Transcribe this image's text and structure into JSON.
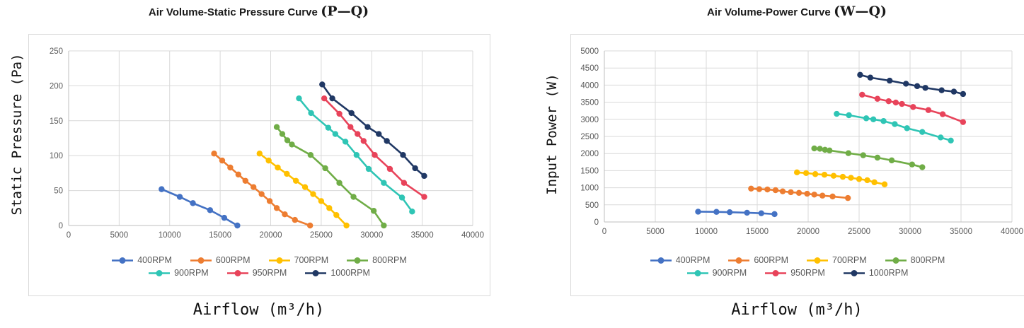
{
  "page": {
    "background": "#ffffff"
  },
  "styles": {
    "grid_color": "#d9d9d9",
    "axis_color": "#bfbfbf",
    "tick_text_color": "#595959",
    "legend_text_color": "#595959",
    "title_text_color": "#1a1a1a",
    "panel_border_color": "#d9d9d9"
  },
  "chart_data": [
    {
      "type": "line",
      "title_main": "Air Volume-Static Pressure Curve",
      "title_paren": "(P—Q)",
      "xlabel": "Airflow (m³/h)",
      "ylabel": "Static Pressure (Pa)",
      "xlim": [
        0,
        40000
      ],
      "ylim": [
        0,
        250
      ],
      "xticks": [
        0,
        5000,
        10000,
        15000,
        20000,
        25000,
        30000,
        35000,
        40000
      ],
      "yticks": [
        0,
        50,
        100,
        150,
        200,
        250
      ],
      "grid": true,
      "legend_position": "bottom-inside",
      "legend_split": 4,
      "series": [
        {
          "name": "400RPM",
          "color": "#4472C4",
          "points": [
            [
              9200,
              52
            ],
            [
              11000,
              41
            ],
            [
              12300,
              32
            ],
            [
              14000,
              22
            ],
            [
              15400,
              11
            ],
            [
              16700,
              0
            ]
          ]
        },
        {
          "name": "600RPM",
          "color": "#ED7D31",
          "points": [
            [
              14400,
              103
            ],
            [
              15200,
              93
            ],
            [
              16000,
              83
            ],
            [
              16800,
              73
            ],
            [
              17500,
              64
            ],
            [
              18300,
              55
            ],
            [
              19100,
              45
            ],
            [
              19900,
              35
            ],
            [
              20600,
              25
            ],
            [
              21400,
              16
            ],
            [
              22400,
              8
            ],
            [
              23900,
              0
            ]
          ]
        },
        {
          "name": "700RPM",
          "color": "#FFC000",
          "points": [
            [
              18900,
              103
            ],
            [
              19800,
              93
            ],
            [
              20700,
              83
            ],
            [
              21600,
              74
            ],
            [
              22500,
              64
            ],
            [
              23400,
              55
            ],
            [
              24200,
              45
            ],
            [
              25000,
              35
            ],
            [
              25800,
              25
            ],
            [
              26500,
              15
            ],
            [
              27500,
              0
            ]
          ]
        },
        {
          "name": "800RPM",
          "color": "#70AD47",
          "points": [
            [
              20600,
              141
            ],
            [
              21150,
              131
            ],
            [
              21650,
              122
            ],
            [
              22100,
              116
            ],
            [
              23950,
              101
            ],
            [
              25400,
              82
            ],
            [
              26800,
              61
            ],
            [
              28200,
              41
            ],
            [
              30200,
              21
            ],
            [
              31200,
              0
            ]
          ]
        },
        {
          "name": "900RPM",
          "color": "#2FC5B5",
          "points": [
            [
              22800,
              182
            ],
            [
              24000,
              161
            ],
            [
              25700,
              140
            ],
            [
              26400,
              131
            ],
            [
              27400,
              120
            ],
            [
              28500,
              101
            ],
            [
              29700,
              81
            ],
            [
              31200,
              61
            ],
            [
              33000,
              40
            ],
            [
              34000,
              20
            ]
          ]
        },
        {
          "name": "950RPM",
          "color": "#E8435A",
          "points": [
            [
              25300,
              182
            ],
            [
              26800,
              160
            ],
            [
              27900,
              141
            ],
            [
              28600,
              131
            ],
            [
              29200,
              121
            ],
            [
              30300,
              101
            ],
            [
              31800,
              81
            ],
            [
              33200,
              61
            ],
            [
              35200,
              41
            ]
          ]
        },
        {
          "name": "1000RPM",
          "color": "#203864",
          "points": [
            [
              25100,
              202
            ],
            [
              26100,
              182
            ],
            [
              28000,
              161
            ],
            [
              29600,
              141
            ],
            [
              30700,
              131
            ],
            [
              31500,
              121
            ],
            [
              33100,
              101
            ],
            [
              34300,
              82
            ],
            [
              35200,
              71
            ]
          ]
        }
      ]
    },
    {
      "type": "line",
      "title_main": "Air Volume-Power Curve",
      "title_paren": "(W—Q)",
      "xlabel": "Airflow (m³/h)",
      "ylabel": "Input Power (W)",
      "xlim": [
        0,
        40000
      ],
      "ylim": [
        0,
        5000
      ],
      "xticks": [
        0,
        5000,
        10000,
        15000,
        20000,
        25000,
        30000,
        35000,
        40000
      ],
      "yticks": [
        0,
        500,
        1000,
        1500,
        2000,
        2500,
        3000,
        3500,
        4000,
        4500,
        5000
      ],
      "grid": true,
      "legend_position": "bottom-inside",
      "legend_split": 4,
      "series": [
        {
          "name": "400RPM",
          "color": "#4472C4",
          "points": [
            [
              9200,
              300
            ],
            [
              11000,
              295
            ],
            [
              12300,
              285
            ],
            [
              14000,
              270
            ],
            [
              15400,
              255
            ],
            [
              16700,
              230
            ]
          ]
        },
        {
          "name": "600RPM",
          "color": "#ED7D31",
          "points": [
            [
              14400,
              975
            ],
            [
              15200,
              960
            ],
            [
              16000,
              950
            ],
            [
              16800,
              930
            ],
            [
              17500,
              895
            ],
            [
              18300,
              870
            ],
            [
              19100,
              850
            ],
            [
              19900,
              825
            ],
            [
              20600,
              800
            ],
            [
              21400,
              770
            ],
            [
              22400,
              745
            ],
            [
              23900,
              700
            ]
          ]
        },
        {
          "name": "700RPM",
          "color": "#FFC000",
          "points": [
            [
              18900,
              1450
            ],
            [
              19800,
              1430
            ],
            [
              20700,
              1400
            ],
            [
              21600,
              1380
            ],
            [
              22500,
              1350
            ],
            [
              23400,
              1320
            ],
            [
              24200,
              1290
            ],
            [
              25000,
              1255
            ],
            [
              25800,
              1220
            ],
            [
              26500,
              1160
            ],
            [
              27500,
              1100
            ]
          ]
        },
        {
          "name": "800RPM",
          "color": "#70AD47",
          "points": [
            [
              20600,
              2150
            ],
            [
              21150,
              2140
            ],
            [
              21650,
              2110
            ],
            [
              22100,
              2090
            ],
            [
              23950,
              2010
            ],
            [
              25400,
              1950
            ],
            [
              26800,
              1880
            ],
            [
              28200,
              1800
            ],
            [
              30200,
              1680
            ],
            [
              31200,
              1600
            ]
          ]
        },
        {
          "name": "900RPM",
          "color": "#2FC5B5",
          "points": [
            [
              22800,
              3160
            ],
            [
              24000,
              3120
            ],
            [
              25700,
              3030
            ],
            [
              26400,
              3000
            ],
            [
              27400,
              2950
            ],
            [
              28500,
              2860
            ],
            [
              29700,
              2740
            ],
            [
              31200,
              2630
            ],
            [
              33000,
              2470
            ],
            [
              34000,
              2380
            ]
          ]
        },
        {
          "name": "950RPM",
          "color": "#E8435A",
          "points": [
            [
              25300,
              3720
            ],
            [
              26800,
              3600
            ],
            [
              27900,
              3530
            ],
            [
              28600,
              3490
            ],
            [
              29200,
              3450
            ],
            [
              30300,
              3360
            ],
            [
              31800,
              3270
            ],
            [
              33200,
              3150
            ],
            [
              35200,
              2920
            ]
          ]
        },
        {
          "name": "1000RPM",
          "color": "#203864",
          "points": [
            [
              25100,
              4300
            ],
            [
              26100,
              4220
            ],
            [
              28000,
              4130
            ],
            [
              29600,
              4040
            ],
            [
              30700,
              3970
            ],
            [
              31500,
              3920
            ],
            [
              33100,
              3850
            ],
            [
              34300,
              3810
            ],
            [
              35200,
              3740
            ]
          ]
        }
      ]
    }
  ]
}
